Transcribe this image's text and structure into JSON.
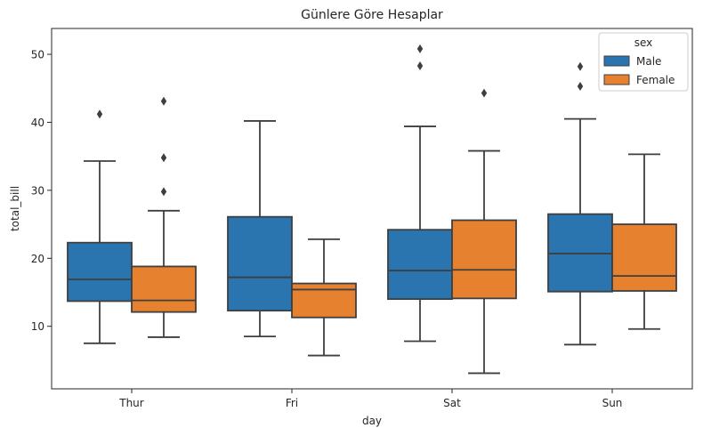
{
  "chart_data": {
    "type": "box",
    "title": "Günlere Göre Hesaplar",
    "xlabel": "day",
    "ylabel": "total_bill",
    "categories": [
      "Thur",
      "Fri",
      "Sat",
      "Sun"
    ],
    "ylim": [
      0.8,
      53.8
    ],
    "yticks": [
      10,
      20,
      30,
      40,
      50
    ],
    "grid": false,
    "legend": {
      "title": "sex",
      "placement": "top-right"
    },
    "series": [
      {
        "name": "Male",
        "color": "#2a75b0",
        "boxes": [
          {
            "low": 7.5,
            "q1": 13.7,
            "median": 16.9,
            "q3": 22.3,
            "high": 34.3,
            "outliers": [
              41.2
            ]
          },
          {
            "low": 8.5,
            "q1": 12.3,
            "median": 17.2,
            "q3": 26.1,
            "high": 40.2,
            "outliers": []
          },
          {
            "low": 7.8,
            "q1": 14.0,
            "median": 18.2,
            "q3": 24.2,
            "high": 39.4,
            "outliers": [
              48.3,
              50.8
            ]
          },
          {
            "low": 7.3,
            "q1": 15.1,
            "median": 20.7,
            "q3": 26.5,
            "high": 40.5,
            "outliers": [
              45.3,
              48.2
            ]
          }
        ]
      },
      {
        "name": "Female",
        "color": "#e6812f",
        "boxes": [
          {
            "low": 8.4,
            "q1": 12.1,
            "median": 13.8,
            "q3": 18.8,
            "high": 27.0,
            "outliers": [
              29.8,
              34.8,
              43.1
            ]
          },
          {
            "low": 5.7,
            "q1": 11.3,
            "median": 15.4,
            "q3": 16.3,
            "high": 22.8,
            "outliers": []
          },
          {
            "low": 3.1,
            "q1": 14.1,
            "median": 18.3,
            "q3": 25.6,
            "high": 35.8,
            "outliers": [
              44.3
            ]
          },
          {
            "low": 9.6,
            "q1": 15.2,
            "median": 17.4,
            "q3": 25.0,
            "high": 35.3,
            "outliers": []
          }
        ]
      }
    ]
  }
}
